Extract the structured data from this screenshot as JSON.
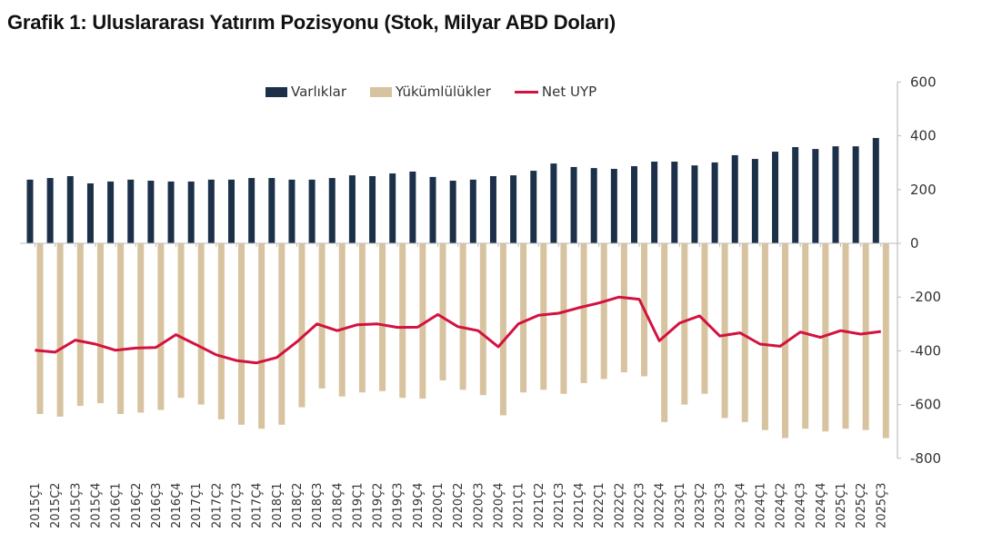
{
  "title": "Grafik 1: Uluslararası Yatırım Pozisyonu (Stok, Milyar ABD Doları)",
  "legend": [
    {
      "label": "Varlıklar",
      "color": "#1c3149",
      "kind": "bar"
    },
    {
      "label": "Yükümlülükler",
      "color": "#d8c3a0",
      "kind": "bar"
    },
    {
      "label": "Net UYP",
      "color": "#d3123e",
      "kind": "line"
    }
  ],
  "chart_data": {
    "type": "bar",
    "title": "Grafik 1: Uluslararası Yatırım Pozisyonu (Stok, Milyar ABD Doları)",
    "xlabel": "",
    "ylabel": "",
    "ylim": [
      -800,
      600
    ],
    "yticks": [
      600,
      400,
      200,
      0,
      -200,
      -400,
      -600,
      -800
    ],
    "y_axis_position": "right",
    "grid": false,
    "legend_position": "top",
    "categories": [
      "2015Ç1",
      "2015Ç2",
      "2015Ç3",
      "2015Ç4",
      "2016Ç1",
      "2016Ç2",
      "2016Ç3",
      "2016Ç4",
      "2017Ç1",
      "2017Ç2",
      "2017Ç3",
      "2017Ç4",
      "2018Ç1",
      "2018Ç2",
      "2018Ç3",
      "2018Ç4",
      "2019Ç1",
      "2019Ç2",
      "2019Ç3",
      "2019Ç4",
      "2020Ç1",
      "2020Ç2",
      "2020Ç3",
      "2020Ç4",
      "2021Ç1",
      "2021Ç2",
      "2021Ç3",
      "2021Ç4",
      "2022Ç1",
      "2022Ç2",
      "2022Ç3",
      "2022Ç4",
      "2023Ç1",
      "2023Ç2",
      "2023Ç3",
      "2023Ç4",
      "2024Ç1",
      "2024Ç2",
      "2024Ç3",
      "2024Ç4",
      "2025Ç1",
      "2025Ç2",
      "2025Ç3"
    ],
    "series": [
      {
        "name": "Varlıklar",
        "type": "bar",
        "color": "#1c3149",
        "values": [
          237,
          243,
          250,
          223,
          230,
          237,
          233,
          230,
          230,
          237,
          237,
          243,
          243,
          237,
          237,
          243,
          253,
          250,
          260,
          267,
          247,
          233,
          237,
          250,
          253,
          270,
          297,
          284,
          280,
          277,
          287,
          304,
          304,
          290,
          301,
          328,
          314,
          341,
          358,
          351,
          361,
          361,
          392
        ]
      },
      {
        "name": "Yükümlülükler",
        "type": "bar",
        "color": "#d8c3a0",
        "values": [
          -635,
          -645,
          -605,
          -595,
          -635,
          -630,
          -620,
          -575,
          -600,
          -655,
          -675,
          -690,
          -675,
          -610,
          -540,
          -570,
          -555,
          -550,
          -575,
          -578,
          -510,
          -545,
          -565,
          -640,
          -555,
          -545,
          -560,
          -520,
          -505,
          -480,
          -495,
          -665,
          -600,
          -560,
          -650,
          -665,
          -695,
          -725,
          -690,
          -700,
          -690,
          -695,
          -725
        ]
      },
      {
        "name": "Net UYP",
        "type": "line",
        "color": "#d3123e",
        "values": [
          -398,
          -405,
          -360,
          -375,
          -398,
          -390,
          -388,
          -340,
          -377,
          -415,
          -436,
          -445,
          -425,
          -367,
          -300,
          -325,
          -303,
          -300,
          -313,
          -312,
          -265,
          -310,
          -325,
          -385,
          -300,
          -268,
          -260,
          -240,
          -222,
          -200,
          -208,
          -363,
          -297,
          -270,
          -345,
          -333,
          -375,
          -383,
          -330,
          -350,
          -325,
          -338,
          -328
        ]
      }
    ]
  }
}
